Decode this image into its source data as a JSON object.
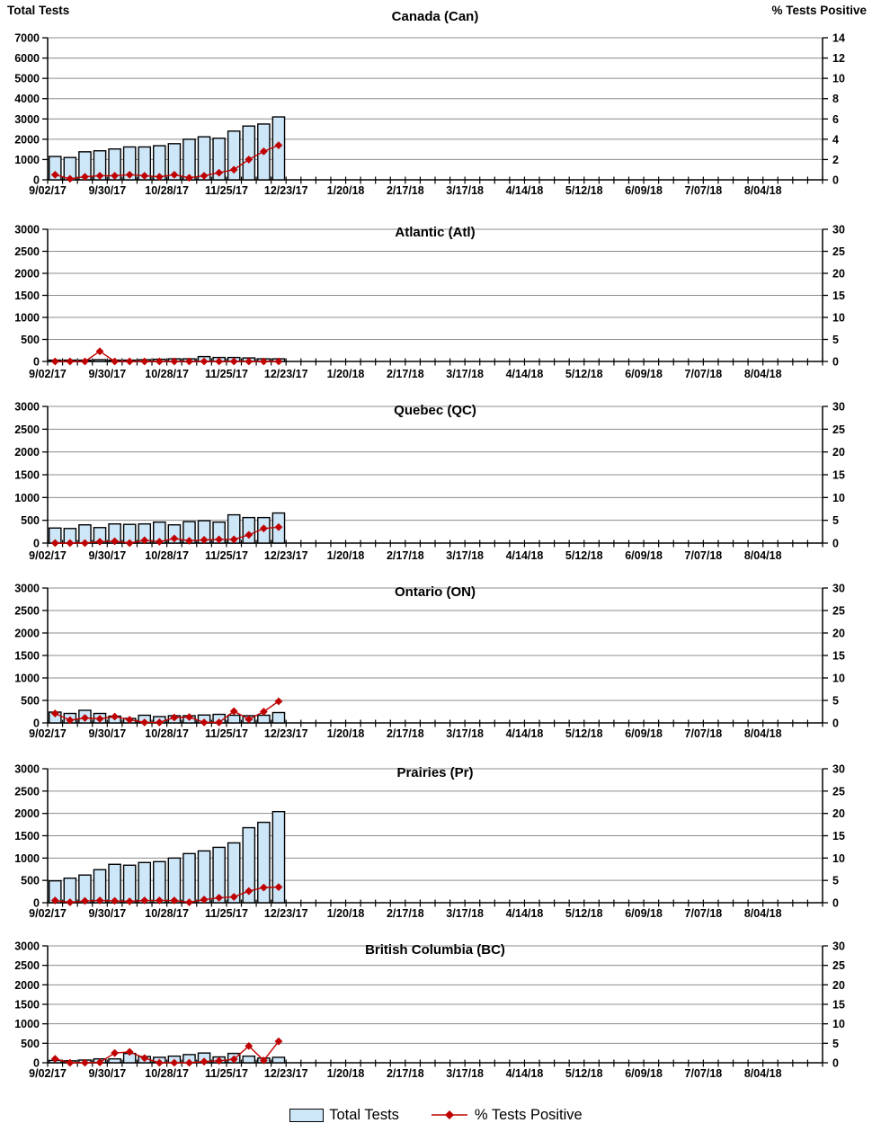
{
  "page": {
    "left_axis_header": "Total Tests",
    "right_axis_header": "% Tests Positive"
  },
  "legend": [
    {
      "label": "Total Tests",
      "swatch": "bar"
    },
    {
      "label": "% Tests Positive",
      "swatch": "line-diamond"
    }
  ],
  "colors": {
    "bar_fill": "#CDE6F8",
    "bar_stroke": "#000000",
    "line": "#C00000",
    "grid": "#8C8C8C",
    "axis": "#000000",
    "text": "#000000"
  },
  "x_axis": {
    "labels": [
      "9/02/17",
      "9/30/17",
      "10/28/17",
      "11/25/17",
      "12/23/17",
      "1/20/18",
      "2/17/18",
      "3/17/18",
      "4/14/18",
      "5/12/18",
      "6/09/18",
      "7/07/18",
      "8/04/18"
    ],
    "weeks_between_labels": 4,
    "total_weeks": 52,
    "data_week_dates": [
      "9/02/17",
      "9/09/17",
      "9/16/17",
      "9/23/17",
      "9/30/17",
      "10/07/17",
      "10/14/17",
      "10/21/17",
      "10/28/17",
      "11/04/17",
      "11/11/17",
      "11/18/17",
      "11/25/17",
      "12/02/17",
      "12/09/17",
      "12/16/17"
    ]
  },
  "chart_data": [
    {
      "type": "bar+line",
      "title": "Canada (Can)",
      "ylabel": "Total Tests",
      "y2label": "% Tests Positive",
      "ylim": [
        0,
        7000
      ],
      "ytick": 1000,
      "y2lim": [
        0,
        14
      ],
      "y2tick": 2,
      "series": [
        {
          "name": "Total Tests",
          "axis": "left",
          "values": [
            1150,
            1100,
            1380,
            1430,
            1520,
            1620,
            1620,
            1680,
            1780,
            2000,
            2120,
            2050,
            2400,
            2650,
            2750,
            3100
          ]
        },
        {
          "name": "% Tests Positive",
          "axis": "right",
          "values": [
            0.5,
            0.1,
            0.3,
            0.4,
            0.4,
            0.5,
            0.4,
            0.3,
            0.5,
            0.2,
            0.4,
            0.7,
            1.0,
            2.0,
            2.8,
            3.4
          ]
        }
      ]
    },
    {
      "type": "bar+line",
      "title": "Atlantic (Atl)",
      "ylim": [
        0,
        3000
      ],
      "ytick": 500,
      "y2lim": [
        0,
        30
      ],
      "y2tick": 5,
      "series": [
        {
          "name": "Total Tests",
          "axis": "left",
          "values": [
            30,
            30,
            30,
            40,
            30,
            30,
            40,
            50,
            60,
            60,
            110,
            90,
            90,
            80,
            60,
            60
          ]
        },
        {
          "name": "% Tests Positive",
          "axis": "right",
          "values": [
            0,
            0,
            0,
            2.3,
            0,
            0,
            0,
            0,
            0,
            0,
            0,
            0,
            0,
            0,
            0,
            0
          ]
        }
      ]
    },
    {
      "type": "bar+line",
      "title": "Quebec (QC)",
      "ylim": [
        0,
        3000
      ],
      "ytick": 500,
      "y2lim": [
        0,
        30
      ],
      "y2tick": 5,
      "series": [
        {
          "name": "Total Tests",
          "axis": "left",
          "values": [
            330,
            320,
            400,
            340,
            420,
            410,
            420,
            460,
            400,
            470,
            490,
            460,
            620,
            560,
            560,
            660
          ]
        },
        {
          "name": "% Tests Positive",
          "axis": "right",
          "values": [
            0,
            0,
            0,
            0.3,
            0.4,
            0,
            0.6,
            0.3,
            1.0,
            0.5,
            0.7,
            0.8,
            0.8,
            1.8,
            3.2,
            3.5
          ]
        }
      ]
    },
    {
      "type": "bar+line",
      "title": "Ontario (ON)",
      "ylim": [
        0,
        3000
      ],
      "ytick": 500,
      "y2lim": [
        0,
        30
      ],
      "y2tick": 5,
      "series": [
        {
          "name": "Total Tests",
          "axis": "left",
          "values": [
            240,
            210,
            280,
            210,
            150,
            100,
            170,
            140,
            160,
            160,
            175,
            190,
            170,
            160,
            170,
            230
          ]
        },
        {
          "name": "% Tests Positive",
          "axis": "right",
          "values": [
            2.1,
            0.6,
            1.1,
            0.9,
            1.4,
            0.7,
            0.1,
            0.1,
            1.2,
            1.3,
            0.1,
            0.1,
            2.6,
            0.8,
            2.5,
            4.8
          ]
        }
      ]
    },
    {
      "type": "bar+line",
      "title": "Prairies (Pr)",
      "ylim": [
        0,
        3000
      ],
      "ytick": 500,
      "y2lim": [
        0,
        30
      ],
      "y2tick": 5,
      "series": [
        {
          "name": "Total Tests",
          "axis": "left",
          "values": [
            490,
            550,
            620,
            740,
            860,
            840,
            900,
            920,
            1000,
            1100,
            1160,
            1240,
            1340,
            1680,
            1800,
            2040
          ]
        },
        {
          "name": "% Tests Positive",
          "axis": "right",
          "values": [
            0.5,
            0.1,
            0.4,
            0.5,
            0.4,
            0.3,
            0.5,
            0.5,
            0.5,
            0.1,
            0.7,
            1.1,
            1.3,
            2.6,
            3.4,
            3.5
          ]
        }
      ]
    },
    {
      "type": "bar+line",
      "title": "British Columbia (BC)",
      "ylim": [
        0,
        3000
      ],
      "ytick": 500,
      "y2lim": [
        0,
        30
      ],
      "y2tick": 5,
      "series": [
        {
          "name": "Total Tests",
          "axis": "left",
          "values": [
            60,
            50,
            70,
            100,
            100,
            240,
            160,
            140,
            170,
            210,
            250,
            150,
            240,
            170,
            120,
            140
          ]
        },
        {
          "name": "% Tests Positive",
          "axis": "right",
          "values": [
            1.0,
            0,
            0,
            0.1,
            2.5,
            2.8,
            1.2,
            0,
            0,
            0,
            0.3,
            0.5,
            0.9,
            4.3,
            0.6,
            5.5
          ]
        }
      ]
    }
  ]
}
